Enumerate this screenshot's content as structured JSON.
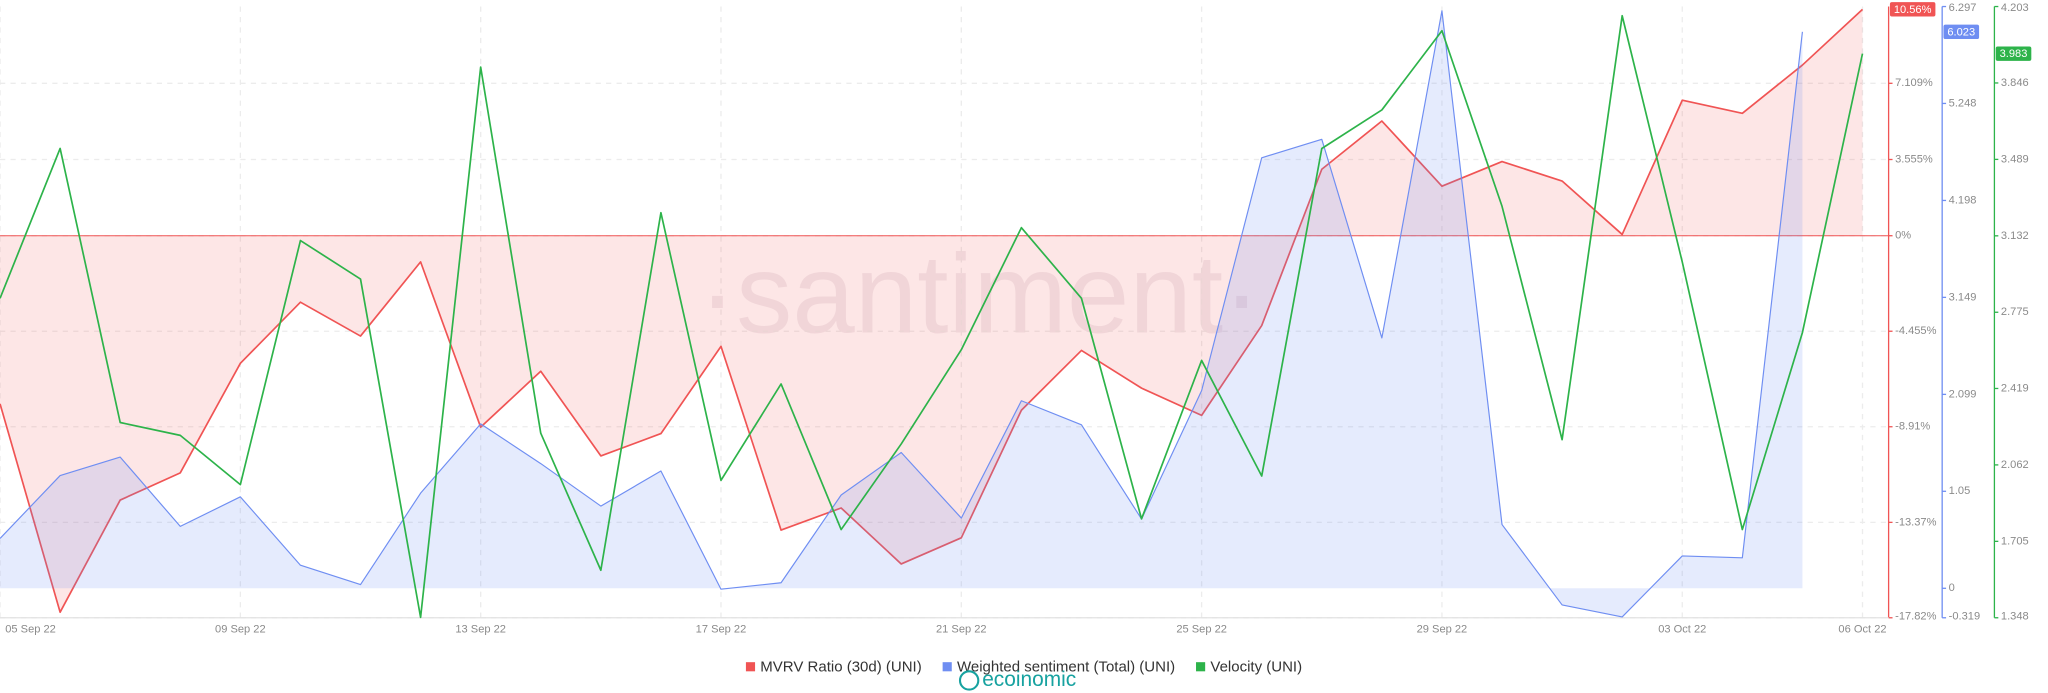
{
  "chart_data": {
    "type": "line",
    "categories": [
      "05 Sep 22",
      null,
      null,
      null,
      "09 Sep 22",
      null,
      null,
      null,
      "13 Sep 22",
      null,
      null,
      null,
      "17 Sep 22",
      null,
      null,
      null,
      "21 Sep 22",
      null,
      null,
      null,
      "25 Sep 22",
      null,
      null,
      null,
      "29 Sep 22",
      null,
      null,
      null,
      "03 Oct 22",
      null,
      null,
      "06 Oct 22"
    ],
    "series": [
      {
        "name": "MVRV Ratio (30d) (UNI)",
        "color": "#f05454",
        "axis": "y",
        "area": true,
        "values": [
          -7.84,
          -17.56,
          -12.33,
          -11.06,
          -5.95,
          -3.1,
          -4.68,
          -1.22,
          -8.93,
          -6.32,
          -10.27,
          -9.23,
          -5.16,
          -13.73,
          -12.7,
          -15.31,
          -14.09,
          -8.14,
          -5.35,
          -7.11,
          -8.38,
          -4.19,
          3.1,
          5.35,
          2.31,
          3.46,
          2.55,
          0.06,
          6.32,
          5.71,
          7.96,
          10.56
        ],
        "value_labels": [
          null,
          null,
          null,
          null,
          null,
          null,
          null,
          null,
          null,
          null,
          null,
          null,
          null,
          null,
          null,
          null,
          null,
          null,
          null,
          null,
          null,
          null,
          null,
          null,
          null,
          null,
          null,
          null,
          null,
          null,
          null,
          "10.56%"
        ]
      },
      {
        "name": "Weighted sentiment (Total) (UNI)",
        "color": "#6f8ef2",
        "axis": "y2",
        "area": true,
        "values": [
          0.54,
          1.22,
          1.42,
          0.67,
          0.99,
          0.25,
          0.04,
          1.03,
          1.78,
          1.35,
          0.89,
          1.27,
          -0.01,
          0.06,
          1.01,
          1.47,
          0.76,
          2.03,
          1.77,
          0.75,
          2.14,
          4.66,
          4.86,
          2.71,
          6.25,
          0.69,
          -0.18,
          -0.31,
          0.35,
          0.33,
          6.023,
          null
        ],
        "value_labels": [
          null,
          null,
          null,
          null,
          null,
          null,
          null,
          null,
          null,
          null,
          null,
          null,
          null,
          null,
          null,
          null,
          null,
          null,
          null,
          null,
          null,
          null,
          null,
          null,
          null,
          null,
          null,
          null,
          null,
          null,
          "6.023",
          null
        ]
      },
      {
        "name": "Velocity (UNI)",
        "color": "#2db34a",
        "axis": "y3",
        "area": false,
        "values": [
          2.84,
          3.54,
          2.26,
          2.2,
          1.97,
          3.11,
          2.93,
          1.35,
          3.92,
          2.21,
          1.57,
          3.24,
          1.99,
          2.44,
          1.76,
          2.16,
          2.6,
          3.17,
          2.84,
          1.81,
          2.55,
          2.01,
          3.54,
          3.72,
          4.09,
          3.27,
          2.18,
          4.16,
          3.01,
          1.76,
          2.68,
          3.983
        ],
        "value_labels": [
          null,
          null,
          null,
          null,
          null,
          null,
          null,
          null,
          null,
          null,
          null,
          null,
          null,
          null,
          null,
          null,
          null,
          null,
          null,
          null,
          null,
          null,
          null,
          null,
          null,
          null,
          null,
          null,
          null,
          null,
          null,
          "3.983"
        ]
      }
    ],
    "ylim": [
      -17.82,
      10.69
    ],
    "yticks": [
      {
        "value": 7.109,
        "label": "7.109%"
      },
      {
        "value": 3.555,
        "label": "3.555%"
      },
      {
        "value": 0,
        "label": "0%"
      },
      {
        "value": -4.455,
        "label": "-4.455%"
      },
      {
        "value": -8.91,
        "label": "-8.91%"
      },
      {
        "value": -13.37,
        "label": "-13.37%"
      },
      {
        "value": -17.82,
        "label": "-17.82%"
      }
    ],
    "y2lim": [
      -0.319,
      6.297
    ],
    "y2ticks": [
      6.297,
      5.248,
      4.198,
      3.149,
      2.099,
      1.05,
      0,
      -0.319
    ],
    "y3lim": [
      1.348,
      4.203
    ],
    "y3ticks": [
      4.203,
      3.846,
      3.489,
      3.132,
      2.775,
      2.419,
      2.062,
      1.705,
      1.348
    ],
    "grid": true,
    "legend": "bottom",
    "watermark": "·santiment·",
    "logo": "ecoinomic"
  }
}
